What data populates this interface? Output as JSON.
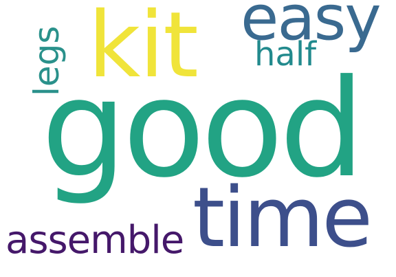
{
  "words": {
    "good": {
      "text": "good",
      "color": "#22a384"
    },
    "time": {
      "text": "time",
      "color": "#3d4f8b"
    },
    "kit": {
      "text": "kit",
      "color": "#f0e43a"
    },
    "easy": {
      "text": "easy",
      "color": "#3a6a90"
    },
    "half": {
      "text": "half",
      "color": "#228a8d"
    },
    "legs": {
      "text": "legs",
      "color": "#2a918b"
    },
    "assemble": {
      "text": "assemble",
      "color": "#45186a"
    }
  }
}
